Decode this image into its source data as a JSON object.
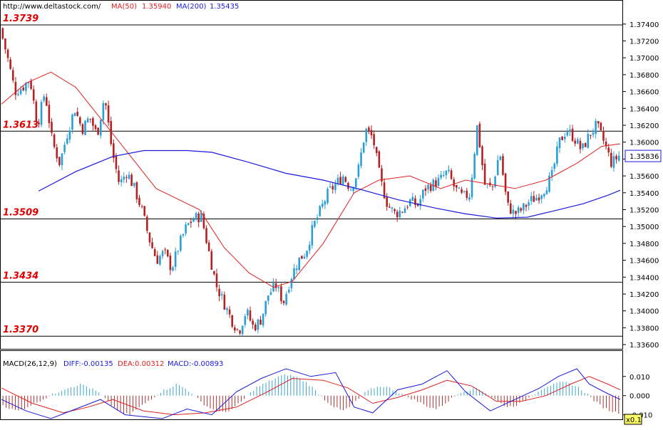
{
  "header": {
    "site": "http://www.deltastock.com/",
    "ma50_label": "MA(50)",
    "ma50_value": "1.35940",
    "ma200_label": "MA(200)",
    "ma200_value": "1.35435"
  },
  "macd_header": {
    "name": "MACD(26,12,9)",
    "diff": "DIFF:-0.00135",
    "dea": "DEA:0.00312",
    "macd": "MACD:-0.00893"
  },
  "colors": {
    "up_candle": "#2a9fd6",
    "down_candle": "#b22222",
    "ma50": "#e02020",
    "ma200": "#1a1adc",
    "level_text": "#e00000",
    "background": "#ffffff"
  },
  "chart_data": [
    {
      "type": "candlestick",
      "title": "",
      "ylim": [
        1.3355,
        1.3755
      ],
      "y_ticks": [
        "1.37400",
        "1.37200",
        "1.37000",
        "1.36800",
        "1.36600",
        "1.36400",
        "1.36200",
        "1.36000",
        "1.35800",
        "1.35600",
        "1.35400",
        "1.35200",
        "1.35000",
        "1.34800",
        "1.34600",
        "1.34400",
        "1.34200",
        "1.34000",
        "1.33800",
        "1.33600"
      ],
      "last_price": "1.35836",
      "horizontal_levels": [
        {
          "label": "1.3739",
          "value": 1.3739
        },
        {
          "label": "1.3613",
          "value": 1.3613
        },
        {
          "label": "1.3509",
          "value": 1.3509
        },
        {
          "label": "1.3434",
          "value": 1.3434
        },
        {
          "label": "1.3370",
          "value": 1.337
        }
      ],
      "price_path": [
        1.3735,
        1.37,
        1.366,
        1.3665,
        1.3675,
        1.362,
        1.366,
        1.36,
        1.3575,
        1.361,
        1.364,
        1.3615,
        1.363,
        1.3608,
        1.3655,
        1.359,
        1.355,
        1.3565,
        1.3545,
        1.352,
        1.3485,
        1.346,
        1.347,
        1.345,
        1.3478,
        1.35,
        1.351,
        1.3512,
        1.347,
        1.343,
        1.341,
        1.339,
        1.3375,
        1.34,
        1.338,
        1.339,
        1.342,
        1.343,
        1.341,
        1.344,
        1.346,
        1.347,
        1.35,
        1.352,
        1.354,
        1.355,
        1.356,
        1.3545,
        1.3565,
        1.3615,
        1.3605,
        1.3555,
        1.3525,
        1.3515,
        1.352,
        1.353,
        1.3525,
        1.3545,
        1.355,
        1.3555,
        1.3565,
        1.3545,
        1.3535,
        1.3538,
        1.362,
        1.355,
        1.3545,
        1.359,
        1.3525,
        1.3515,
        1.352,
        1.353,
        1.3535,
        1.3545,
        1.356,
        1.36,
        1.3615,
        1.3605,
        1.359,
        1.3608,
        1.362,
        1.36,
        1.3575,
        1.3584
      ],
      "ma50": [
        {
          "x": 0.0,
          "y": 1.3645
        },
        {
          "x": 0.04,
          "y": 1.367
        },
        {
          "x": 0.08,
          "y": 1.3683
        },
        {
          "x": 0.12,
          "y": 1.3665
        },
        {
          "x": 0.18,
          "y": 1.361
        },
        {
          "x": 0.25,
          "y": 1.3545
        },
        {
          "x": 0.32,
          "y": 1.352
        },
        {
          "x": 0.36,
          "y": 1.3475
        },
        {
          "x": 0.4,
          "y": 1.3445
        },
        {
          "x": 0.44,
          "y": 1.3428
        },
        {
          "x": 0.47,
          "y": 1.3435
        },
        {
          "x": 0.52,
          "y": 1.348
        },
        {
          "x": 0.57,
          "y": 1.354
        },
        {
          "x": 0.61,
          "y": 1.3555
        },
        {
          "x": 0.66,
          "y": 1.356
        },
        {
          "x": 0.71,
          "y": 1.3545
        },
        {
          "x": 0.75,
          "y": 1.3555
        },
        {
          "x": 0.79,
          "y": 1.355
        },
        {
          "x": 0.83,
          "y": 1.3545
        },
        {
          "x": 0.88,
          "y": 1.3555
        },
        {
          "x": 0.93,
          "y": 1.3575
        },
        {
          "x": 0.97,
          "y": 1.3595
        },
        {
          "x": 1.0,
          "y": 1.3598
        }
      ],
      "ma200": [
        {
          "x": 0.06,
          "y": 1.3542
        },
        {
          "x": 0.12,
          "y": 1.3565
        },
        {
          "x": 0.18,
          "y": 1.3583
        },
        {
          "x": 0.23,
          "y": 1.359
        },
        {
          "x": 0.3,
          "y": 1.359
        },
        {
          "x": 0.34,
          "y": 1.3588
        },
        {
          "x": 0.4,
          "y": 1.3576
        },
        {
          "x": 0.46,
          "y": 1.3563
        },
        {
          "x": 0.52,
          "y": 1.3555
        },
        {
          "x": 0.58,
          "y": 1.3544
        },
        {
          "x": 0.64,
          "y": 1.3532
        },
        {
          "x": 0.7,
          "y": 1.3522
        },
        {
          "x": 0.75,
          "y": 1.3515
        },
        {
          "x": 0.8,
          "y": 1.351
        },
        {
          "x": 0.85,
          "y": 1.3511
        },
        {
          "x": 0.89,
          "y": 1.3518
        },
        {
          "x": 0.94,
          "y": 1.3527
        },
        {
          "x": 0.98,
          "y": 1.3537
        },
        {
          "x": 1.0,
          "y": 1.3543
        }
      ]
    },
    {
      "type": "bar",
      "title": "MACD(26,12,9)",
      "ylim": [
        -0.012,
        0.014
      ],
      "y_ticks": [
        "0.010",
        "0.000",
        "-0.010"
      ],
      "scale_label": "x0.1",
      "hist": [
        -0.005,
        -0.007,
        -0.008,
        -0.006,
        -0.004,
        -0.002,
        0.0,
        0.002,
        0.004,
        0.005,
        0.006,
        0.004,
        0.002,
        -0.002,
        -0.006,
        -0.009,
        -0.01,
        -0.007,
        -0.004,
        -0.001,
        0.002,
        0.004,
        0.006,
        0.004,
        0.001,
        -0.003,
        -0.006,
        -0.008,
        -0.009,
        -0.007,
        -0.004,
        0.0,
        0.004,
        0.006,
        0.008,
        0.01,
        0.011,
        0.01,
        0.008,
        0.005,
        0.001,
        -0.003,
        -0.006,
        -0.008,
        -0.006,
        -0.002,
        0.002,
        0.004,
        0.005,
        0.004,
        0.002,
        0.0,
        -0.002,
        -0.004,
        -0.006,
        -0.007,
        -0.004,
        -0.001,
        0.002,
        0.003,
        0.004,
        0.002,
        -0.001,
        -0.004,
        -0.006,
        -0.005,
        -0.003,
        0.0,
        0.003,
        0.005,
        0.006,
        0.007,
        0.006,
        0.004,
        0.001,
        -0.003,
        -0.006,
        -0.008,
        -0.009
      ],
      "diff": [
        {
          "x": 0.0,
          "y": -0.002
        },
        {
          "x": 0.04,
          "y": -0.008
        },
        {
          "x": 0.08,
          "y": -0.012
        },
        {
          "x": 0.12,
          "y": -0.007
        },
        {
          "x": 0.16,
          "y": -0.002
        },
        {
          "x": 0.2,
          "y": -0.01
        },
        {
          "x": 0.26,
          "y": -0.012
        },
        {
          "x": 0.3,
          "y": -0.007
        },
        {
          "x": 0.34,
          "y": -0.01
        },
        {
          "x": 0.38,
          "y": 0.002
        },
        {
          "x": 0.42,
          "y": 0.009
        },
        {
          "x": 0.46,
          "y": 0.014
        },
        {
          "x": 0.5,
          "y": 0.01
        },
        {
          "x": 0.54,
          "y": 0.012
        },
        {
          "x": 0.57,
          "y": -0.006
        },
        {
          "x": 0.6,
          "y": -0.009
        },
        {
          "x": 0.64,
          "y": 0.003
        },
        {
          "x": 0.68,
          "y": 0.006
        },
        {
          "x": 0.72,
          "y": 0.013
        },
        {
          "x": 0.75,
          "y": 0.002
        },
        {
          "x": 0.79,
          "y": -0.008
        },
        {
          "x": 0.83,
          "y": -0.002
        },
        {
          "x": 0.87,
          "y": 0.004
        },
        {
          "x": 0.9,
          "y": 0.01
        },
        {
          "x": 0.93,
          "y": 0.014
        },
        {
          "x": 0.95,
          "y": 0.006
        },
        {
          "x": 0.98,
          "y": 0.001
        },
        {
          "x": 1.0,
          "y": -0.002
        }
      ],
      "dea": [
        {
          "x": 0.0,
          "y": 0.004
        },
        {
          "x": 0.05,
          "y": -0.004
        },
        {
          "x": 0.1,
          "y": -0.009
        },
        {
          "x": 0.14,
          "y": -0.006
        },
        {
          "x": 0.18,
          "y": -0.002
        },
        {
          "x": 0.23,
          "y": -0.008
        },
        {
          "x": 0.28,
          "y": -0.01
        },
        {
          "x": 0.33,
          "y": -0.009
        },
        {
          "x": 0.38,
          "y": -0.006
        },
        {
          "x": 0.43,
          "y": 0.002
        },
        {
          "x": 0.47,
          "y": 0.009
        },
        {
          "x": 0.52,
          "y": 0.008
        },
        {
          "x": 0.56,
          "y": 0.004
        },
        {
          "x": 0.6,
          "y": -0.004
        },
        {
          "x": 0.64,
          "y": -0.001
        },
        {
          "x": 0.68,
          "y": 0.003
        },
        {
          "x": 0.72,
          "y": 0.008
        },
        {
          "x": 0.76,
          "y": 0.005
        },
        {
          "x": 0.8,
          "y": -0.003
        },
        {
          "x": 0.84,
          "y": -0.003
        },
        {
          "x": 0.88,
          "y": 0.0
        },
        {
          "x": 0.92,
          "y": 0.006
        },
        {
          "x": 0.95,
          "y": 0.01
        },
        {
          "x": 0.98,
          "y": 0.006
        },
        {
          "x": 1.0,
          "y": 0.003
        }
      ]
    }
  ]
}
